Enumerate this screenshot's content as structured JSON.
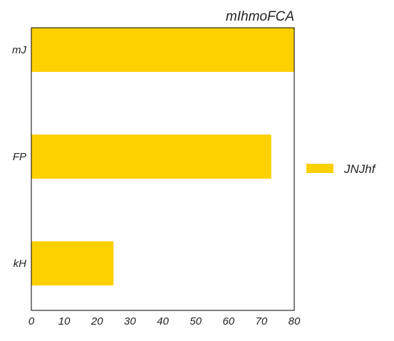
{
  "chart_data": {
    "type": "bar",
    "orientation": "horizontal",
    "title": "mIhmoFCA",
    "categories": [
      "mJ",
      "FP",
      "kH"
    ],
    "series": [
      {
        "name": "JNJhf",
        "values": [
          80,
          73,
          25
        ],
        "color": "#FDD000"
      }
    ],
    "xlim": [
      0,
      80
    ],
    "xticks": [
      0,
      10,
      20,
      30,
      40,
      50,
      60,
      70,
      80
    ],
    "grid": false,
    "legend": {
      "placement": "right",
      "entries": [
        "JNJhf"
      ]
    }
  }
}
